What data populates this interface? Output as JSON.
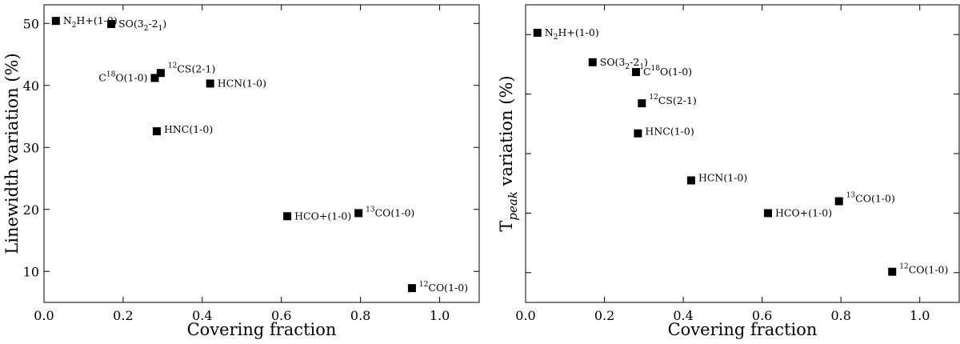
{
  "chart_data": [
    {
      "type": "scatter",
      "xlabel": "Covering fraction",
      "ylabel": "Linewidth variation (%)",
      "xlim": [
        0.0,
        1.1
      ],
      "ylim": [
        5,
        53
      ],
      "xticks": [
        0.0,
        0.2,
        0.4,
        0.6,
        0.8,
        1.0
      ],
      "xtick_labels": [
        "0.0",
        "0.2",
        "0.4",
        "0.6",
        "0.8",
        "1.0"
      ],
      "yticks": [
        10,
        20,
        30,
        40,
        50
      ],
      "ytick_labels": [
        "10",
        "20",
        "30",
        "40",
        "50"
      ],
      "grid": false,
      "marker": "square",
      "marker_color": "#000000",
      "points": [
        {
          "x": 0.03,
          "y": 50.4,
          "label": "N2H+(1-0)",
          "label_html": "N<tspan dy='4' font-size='9'>2</tspan><tspan dy='-4'>H+(1-0)</tspan>"
        },
        {
          "x": 0.17,
          "y": 49.9,
          "label": "SO(32-21)",
          "label_html": "SO(3<tspan dy='4' font-size='9'>2</tspan><tspan dy='-4'>-2</tspan><tspan dy='4' font-size='9'>1</tspan><tspan dy='-4'>)</tspan>"
        },
        {
          "x": 0.28,
          "y": 41.2,
          "label": "C18O(1-0)",
          "label_html": "C<tspan dy='-6' font-size='9'>18</tspan><tspan dy='6'>O(1-0)</tspan>",
          "label_side": "left"
        },
        {
          "x": 0.295,
          "y": 42.0,
          "label": "12CS(2-1)",
          "label_html": "<tspan dy='-6' font-size='9'>12</tspan><tspan dy='6'>CS(2-1)</tspan>",
          "label_dy": -5
        },
        {
          "x": 0.42,
          "y": 40.3,
          "label": "HCN(1-0)",
          "label_html": "HCN(1-0)"
        },
        {
          "x": 0.285,
          "y": 32.6,
          "label": "HNC(1-0)",
          "label_html": "HNC(1-0)",
          "label_dy": -2
        },
        {
          "x": 0.615,
          "y": 18.9,
          "label": "HCO+(1-0)",
          "label_html": "HCO+(1-0)"
        },
        {
          "x": 0.795,
          "y": 19.4,
          "label": "13CO(1-0)",
          "label_html": "<tspan dy='-6' font-size='9'>13</tspan><tspan dy='6'>CO(1-0)</tspan>"
        },
        {
          "x": 0.93,
          "y": 7.3,
          "label": "12CO(1-0)",
          "label_html": "<tspan dy='-6' font-size='9'>12</tspan><tspan dy='6'>CO(1-0)</tspan>"
        }
      ]
    },
    {
      "type": "scatter",
      "xlabel": "Covering fraction",
      "ylabel": "T_peak variation (%)",
      "ylabel_html": "T<tspan dy='6' font-size='15' font-style='italic'>peak</tspan><tspan dy='-6'> variation (%)</tspan>",
      "xlim": [
        0.0,
        1.1
      ],
      "ylim": [
        0,
        100
      ],
      "xticks": [
        0.0,
        0.2,
        0.4,
        0.6,
        0.8,
        1.0
      ],
      "xtick_labels": [
        "0.0",
        "0.2",
        "0.4",
        "0.6",
        "0.8",
        "1.0"
      ],
      "yticks": [
        10,
        30,
        50,
        70,
        90
      ],
      "ytick_labels": [],
      "grid": false,
      "marker": "square",
      "marker_color": "#000000",
      "points": [
        {
          "x": 0.03,
          "y": 90.6,
          "label": "N2H+(1-0)",
          "label_html": "N<tspan dy='4' font-size='9'>2</tspan><tspan dy='-4'>H+(1-0)</tspan>"
        },
        {
          "x": 0.17,
          "y": 80.7,
          "label": "SO(32-21)",
          "label_html": "SO(3<tspan dy='4' font-size='9'>2</tspan><tspan dy='-4'>-2</tspan><tspan dy='4' font-size='9'>1</tspan><tspan dy='-4'>)</tspan>"
        },
        {
          "x": 0.28,
          "y": 77.4,
          "label": "C18O(1-0)",
          "label_html": "C<tspan dy='-6' font-size='9'>18</tspan><tspan dy='6'>O(1-0)</tspan>"
        },
        {
          "x": 0.295,
          "y": 66.9,
          "label": "12CS(2-1)",
          "label_html": "<tspan dy='-6' font-size='9'>12</tspan><tspan dy='6'>CS(2-1)</tspan>",
          "label_dy": -3
        },
        {
          "x": 0.285,
          "y": 56.8,
          "label": "HNC(1-0)",
          "label_html": "HNC(1-0)",
          "label_dy": -2
        },
        {
          "x": 0.42,
          "y": 41.0,
          "label": "HCN(1-0)",
          "label_html": "HCN(1-0)",
          "label_dy": -3
        },
        {
          "x": 0.615,
          "y": 30.0,
          "label": "HCO+(1-0)",
          "label_html": "HCO+(1-0)"
        },
        {
          "x": 0.795,
          "y": 34.0,
          "label": "13CO(1-0)",
          "label_html": "<tspan dy='-6' font-size='9'>13</tspan><tspan dy='6'>CO(1-0)</tspan>",
          "label_dy": -3
        },
        {
          "x": 0.93,
          "y": 10.3,
          "label": "12CO(1-0)",
          "label_html": "<tspan dy='-6' font-size='9'>12</tspan><tspan dy='6'>CO(1-0)</tspan>",
          "label_dy": -2
        }
      ]
    }
  ]
}
